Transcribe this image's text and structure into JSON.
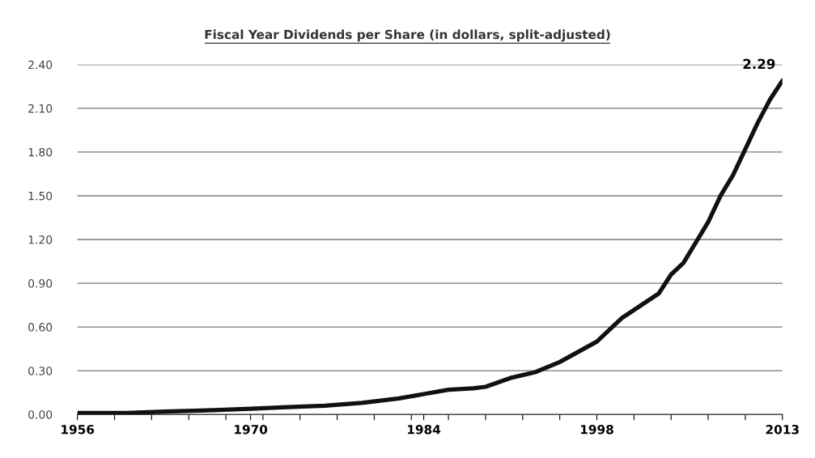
{
  "chart_data": {
    "type": "line",
    "title": "Fiscal Year Dividends per Share (in dollars, split-adjusted)",
    "x": [
      1956,
      1960,
      1963,
      1967,
      1970,
      1973,
      1976,
      1979,
      1982,
      1984,
      1986,
      1988,
      1989,
      1991,
      1993,
      1995,
      1998,
      2000,
      2003,
      2004,
      2005,
      2006,
      2007,
      2008,
      2009,
      2010,
      2011,
      2012,
      2013
    ],
    "series": [
      {
        "color": "#111111",
        "values": [
          0.01,
          0.01,
          0.02,
          0.03,
          0.04,
          0.05,
          0.06,
          0.08,
          0.11,
          0.14,
          0.17,
          0.18,
          0.19,
          0.25,
          0.29,
          0.36,
          0.5,
          0.66,
          0.83,
          0.96,
          1.04,
          1.18,
          1.32,
          1.5,
          1.64,
          1.82,
          2.0,
          2.16,
          2.29
        ]
      }
    ],
    "annotations": [
      {
        "text": "2.29",
        "x": 2013,
        "y": 2.29
      }
    ],
    "xlim": [
      1956,
      2013
    ],
    "xticks": [
      1956,
      {
        "value": 1959,
        "label": null
      },
      {
        "value": 1962,
        "label": null
      },
      {
        "value": 1965,
        "label": null
      },
      {
        "value": 1968,
        "label": null
      },
      1970,
      {
        "value": 1971,
        "label": null
      },
      {
        "value": 1974,
        "label": null
      },
      {
        "value": 1977,
        "label": null
      },
      {
        "value": 1980,
        "label": null
      },
      {
        "value": 1983,
        "label": null
      },
      1984,
      {
        "value": 1986,
        "label": null
      },
      {
        "value": 1989,
        "label": null
      },
      {
        "value": 1992,
        "label": null
      },
      {
        "value": 1995,
        "label": null
      },
      1998,
      {
        "value": 2001,
        "label": null
      },
      {
        "value": 2004,
        "label": null
      },
      {
        "value": 2007,
        "label": null
      },
      {
        "value": 2010,
        "label": null
      },
      2013
    ],
    "ylim": [
      0,
      2.4
    ],
    "yticks": [
      {
        "value": 0,
        "label": "0.00"
      },
      {
        "value": 0.3,
        "label": "0.30"
      },
      {
        "value": 0.6,
        "label": "0.60"
      },
      {
        "value": 0.9,
        "label": "0.90"
      },
      {
        "value": 1.2,
        "label": "1.20"
      },
      {
        "value": 1.5,
        "label": "1.50"
      },
      {
        "value": 1.8,
        "label": "1.80"
      },
      {
        "value": 2.1,
        "label": "2.10"
      },
      {
        "value": 2.4,
        "label": "2.40"
      }
    ],
    "grid": "y",
    "legend": false,
    "marker": "none",
    "line_style": "solid"
  }
}
